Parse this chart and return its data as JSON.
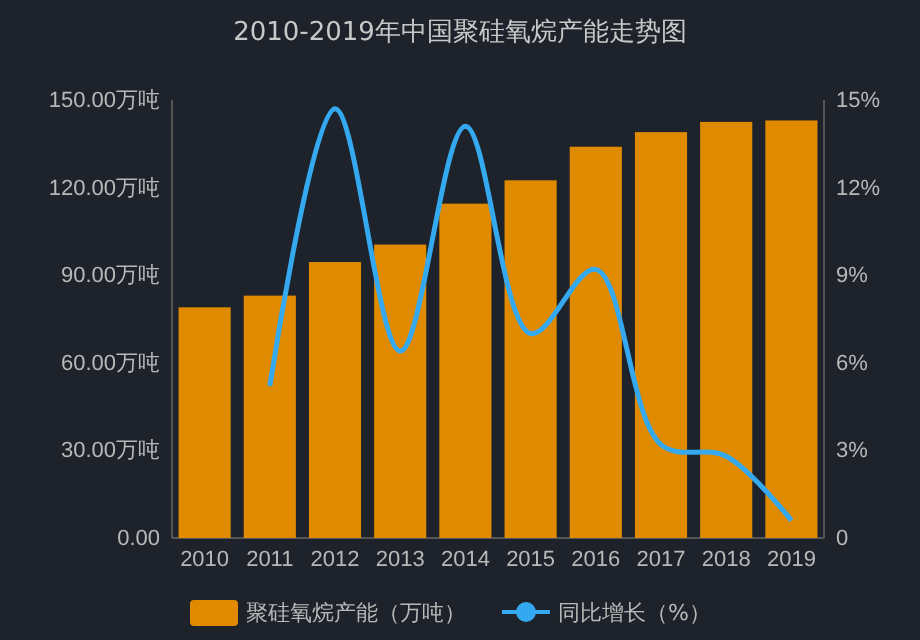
{
  "chart_data": {
    "type": "bar",
    "title": "2010-2019年中国聚硅氧烷产能走势图",
    "categories": [
      "2010",
      "2011",
      "2012",
      "2013",
      "2014",
      "2015",
      "2016",
      "2017",
      "2018",
      "2019"
    ],
    "series": [
      {
        "name": "聚硅氧烷产能（万吨）",
        "color": "#e08a00",
        "values": [
          79,
          83,
          94.5,
          100.5,
          114.5,
          122.5,
          134,
          139,
          142.5,
          143
        ]
      },
      {
        "name": "同比增长（%）",
        "type": "line",
        "axis": "y2",
        "color": "#35a9f0",
        "marker": "none",
        "values": [
          null,
          5.2,
          14.7,
          6.4,
          14.1,
          7.0,
          9.2,
          3.2,
          2.8,
          0.6
        ]
      }
    ],
    "ylim": [
      0,
      150
    ],
    "yticks": [
      {
        "value": 0,
        "label": "0.00"
      },
      {
        "value": 30,
        "label": "30.00万吨"
      },
      {
        "value": 60,
        "label": "60.00万吨"
      },
      {
        "value": 90,
        "label": "90.00万吨"
      },
      {
        "value": 120,
        "label": "120.00万吨"
      },
      {
        "value": 150,
        "label": "150.00万吨"
      }
    ],
    "y2lim": [
      0,
      15
    ],
    "y2ticks": [
      0,
      {
        "value": 3,
        "label": "3%"
      },
      {
        "value": 6,
        "label": "6%"
      },
      {
        "value": 9,
        "label": "9%"
      },
      {
        "value": 12,
        "label": "12%"
      },
      {
        "value": 15,
        "label": "15%"
      }
    ],
    "legend": "bottom"
  }
}
